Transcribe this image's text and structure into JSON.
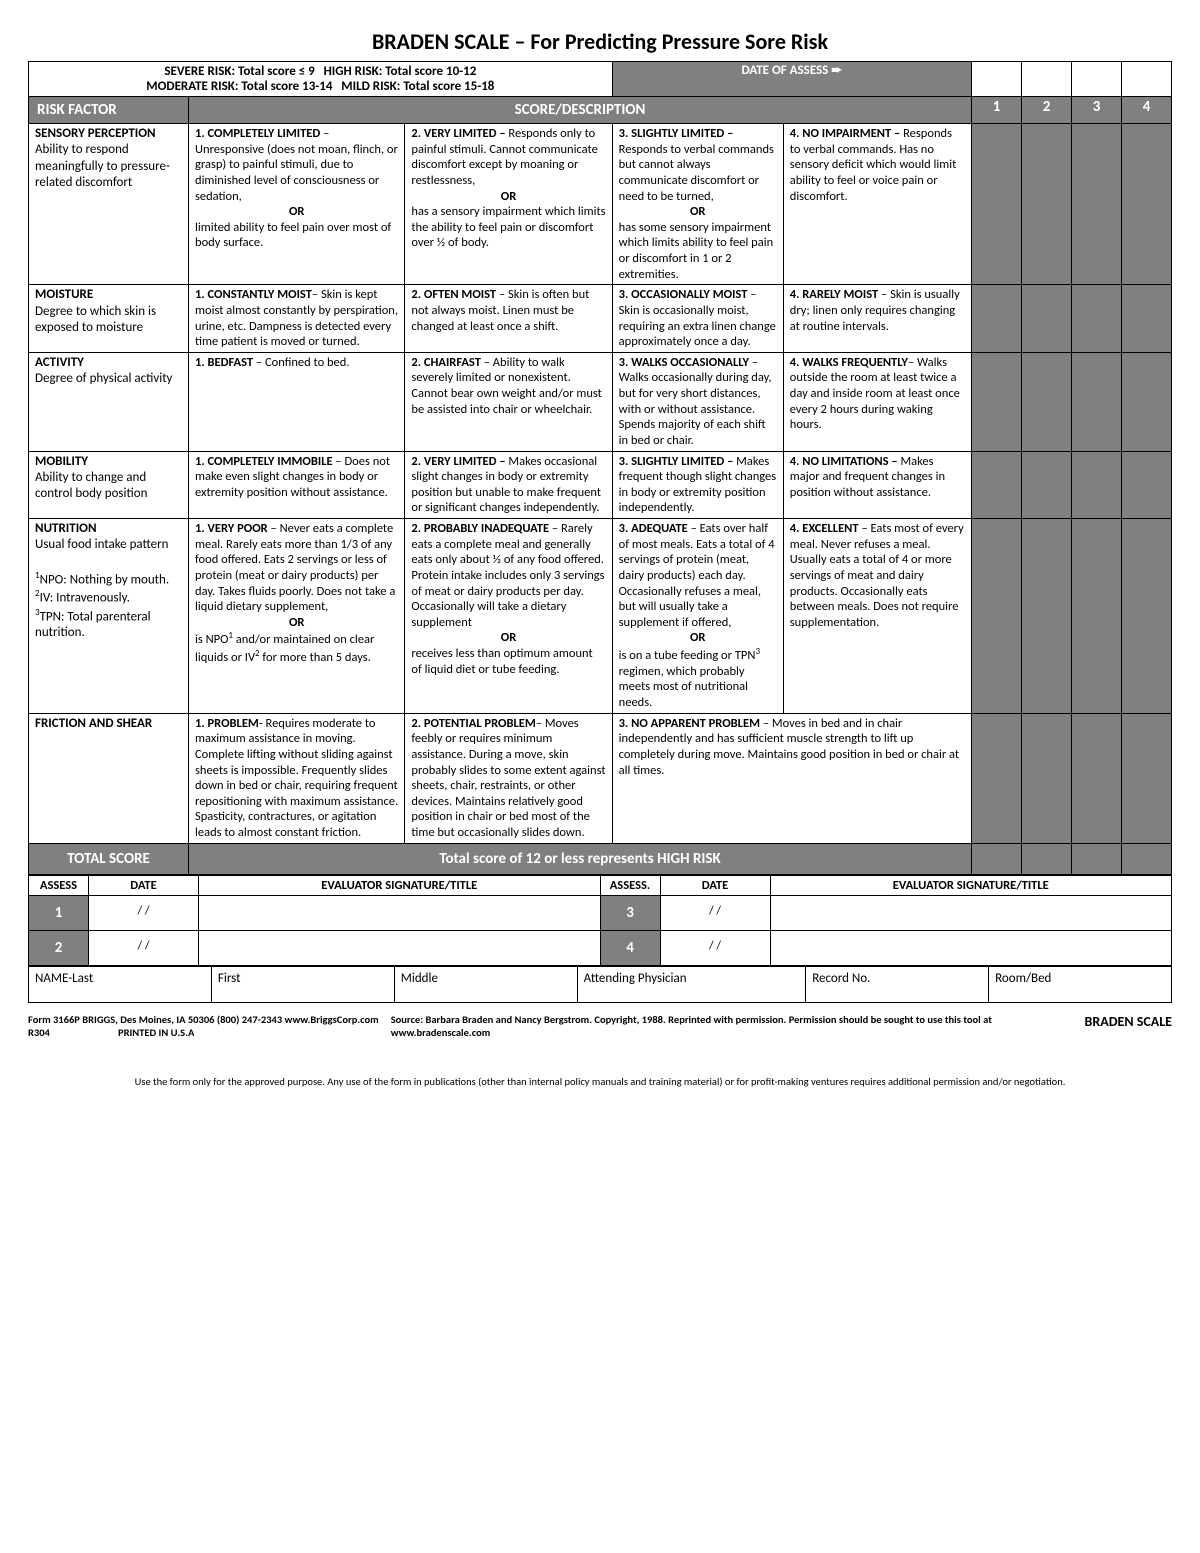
{
  "title": "BRADEN SCALE – For Predicting Pressure Sore Risk",
  "riskLine1a": "SEVERE RISK: Total score ≤ 9",
  "riskLine1b": "HIGH RISK: Total score 10-12",
  "riskLine2a": "MODERATE RISK: Total score 13-14",
  "riskLine2b": "MILD RISK: Total score 15-18",
  "dateOfAssess": "DATE OF ASSESS ➨",
  "hdrRiskFactor": "RISK FACTOR",
  "hdrScoreDesc": "SCORE/DESCRIPTION",
  "colNums": [
    "1",
    "2",
    "3",
    "4"
  ],
  "rows": [
    {
      "factor": "SENSORY PERCEPTION",
      "factorDesc": "Ability to respond meaningfully to pressure-related discomfort",
      "c1t": "1. COMPLETELY LIMITED",
      "c1d": " – Unresponsive (does not moan, flinch, or grasp) to painful stimuli, due to diminished level of consciousness or sedation,",
      "c1or": "OR",
      "c1d2": "limited ability to feel pain over most of body surface.",
      "c2t": "2. VERY LIMITED –",
      "c2d": " Responds only to painful stimuli. Cannot communicate discomfort except by moaning or restlessness,",
      "c2or": "OR",
      "c2d2": "has a sensory impairment which limits the ability to feel pain or discomfort over ½ of body.",
      "c3t": "3. SLIGHTLY LIMITED –",
      "c3d": " Responds to verbal commands but cannot always communicate discomfort or need to be turned,",
      "c3or": "OR",
      "c3d2": "has some sensory impairment which limits ability to feel pain or discomfort in 1 or 2 extremities.",
      "c4t": "4. NO IMPAIRMENT –",
      "c4d": " Responds to verbal commands. Has no sensory deficit which would limit ability to feel or voice pain or discomfort."
    },
    {
      "factor": "MOISTURE",
      "factorDesc": "Degree to which skin is exposed to moisture",
      "c1t": "1. CONSTANTLY MOIST",
      "c1d": "– Skin is kept moist almost constantly by perspiration, urine, etc. Dampness is detected every time patient is moved or turned.",
      "c2t": "2. OFTEN MOIST",
      "c2d": " – Skin is often but not always moist. Linen must be changed at least once a shift.",
      "c3t": "3. OCCASIONALLY MOIST",
      "c3d": " – Skin is occasionally moist, requiring an extra linen change approximately once a day.",
      "c4t": "4. RARELY MOIST",
      "c4d": " – Skin is usually dry; linen only requires changing at routine intervals."
    },
    {
      "factor": "ACTIVITY",
      "factorDesc": "Degree of physical activity",
      "c1t": "1. BEDFAST",
      "c1d": " – Confined to bed.",
      "c2t": "2. CHAIRFAST",
      "c2d": " – Ability to walk severely limited or nonexistent. Cannot bear own weight and/or must be assisted into chair or wheelchair.",
      "c3t": "3. WALKS OCCASIONALLY",
      "c3d": " – Walks occasionally during day, but for very short distances, with or without assistance. Spends majority of each shift in bed or chair.",
      "c4t": "4. WALKS FREQUENTLY",
      "c4d": "– Walks outside the room at least twice a day and inside room at least once every 2 hours during waking hours."
    },
    {
      "factor": "MOBILITY",
      "factorDesc": "Ability to change and control body position",
      "c1t": "1. COMPLETELY IMMOBILE",
      "c1d": " – Does not make even slight changes in body or extremity position without assistance.",
      "c2t": "2. VERY LIMITED –",
      "c2d": " Makes occasional slight changes in body or extremity position but unable to make frequent or significant changes independently.",
      "c3t": "3. SLIGHTLY LIMITED –",
      "c3d": " Makes frequent though slight changes in body or extremity position independently.",
      "c4t": "4. NO LIMITATIONS –",
      "c4d": " Makes major and frequent changes in position without assistance."
    },
    {
      "factor": "NUTRITION",
      "factorDesc": "Usual food intake pattern",
      "factorNotes": "<sup>1</sup>NPO: Nothing by mouth.<br><sup>2</sup>IV: Intravenously.<br><sup>3</sup>TPN: Total parenteral nutrition.",
      "c1t": "1. VERY POOR",
      "c1d": " – Never eats a complete meal. Rarely eats more than 1/3 of any food offered. Eats 2 servings or less of protein (meat or dairy products) per day. Takes fluids poorly. Does not take a liquid dietary supplement,",
      "c1or": "OR",
      "c1d2": "is NPO<sup>1</sup> and/or maintained on clear liquids or IV<sup>2</sup> for more than 5 days.",
      "c2t": "2. PROBABLY INADEQUATE",
      "c2d": " – Rarely eats a complete meal and generally eats only about ½ of any food offered. Protein intake includes only 3 servings of meat or dairy products per day. Occasionally will take a dietary supplement",
      "c2or": "OR",
      "c2d2": "receives less than optimum amount of liquid diet or tube feeding.",
      "c3t": "3. ADEQUATE",
      "c3d": " – Eats over half of most meals. Eats a total of 4 servings of protein (meat, dairy products) each day. Occasionally refuses a meal, but will usually take a supplement if offered,",
      "c3or": "OR",
      "c3d2": "is on a tube feeding or TPN<sup>3</sup> regimen, which probably meets most of nutritional needs.",
      "c4t": "4. EXCELLENT",
      "c4d": " – Eats most of every meal. Never refuses a meal. Usually eats a total of 4 or more servings of meat and dairy products. Occasionally eats between meals. Does not require supplementation."
    },
    {
      "factor": "FRICTION AND SHEAR",
      "factorDesc": "",
      "c1t": "1. PROBLEM",
      "c1d": "- Requires moderate to maximum assistance in moving. Complete lifting without sliding against sheets is impossible. Frequently slides down in bed or chair, requiring frequent repositioning with maximum assistance. Spasticity, contractures, or agitation leads to almost constant friction.",
      "c2t": "2. POTENTIAL PROBLEM",
      "c2d": "– Moves feebly or requires minimum assistance. During a move, skin probably slides to some extent against sheets, chair, restraints, or other devices. Maintains relatively good position in chair or bed most of the time but occasionally slides down.",
      "c3t": "3. NO APPARENT PROBLEM",
      "c3d": " – Moves in bed and in chair independently and has sufficient muscle strength to lift up completely during move. Maintains good position in bed or chair at all times.",
      "noFour": true
    }
  ],
  "totalLabel": "TOTAL SCORE",
  "totalMsg": "Total score of 12 or less represents HIGH RISK",
  "sigHdr": {
    "assess": "ASSESS",
    "date": "DATE",
    "eval": "EVALUATOR SIGNATURE/TITLE",
    "assess2": "ASSESS.",
    "date2": "DATE",
    "eval2": "EVALUATOR SIGNATURE/TITLE"
  },
  "sigNums": [
    "1",
    "2",
    "3",
    "4"
  ],
  "slashDate": "/   /",
  "nameRow": {
    "last": "NAME-Last",
    "first": "First",
    "middle": "Middle",
    "phys": "Attending Physician",
    "rec": "Record No.",
    "room": "Room/Bed"
  },
  "footerLeft1": "Form 3166P  BRIGGS, Des Moines, IA 50306 (800) 247-2343 www.BriggsCorp.com",
  "footerLeft2": "R304",
  "footerLeft3": "PRINTED IN U.S.A",
  "footerMid": "Source:  Barbara Braden and Nancy Bergstrom. Copyright, 1988. Reprinted with permission. Permission should be sought to use this tool at www.bradenscale.com",
  "footerBrand": "BRADEN SCALE",
  "disclaimer": "Use the form only for the approved purpose. Any use of the form in publications (other than internal policy manuals and training material) or for profit-making ventures requires additional permission and/or negotiation."
}
